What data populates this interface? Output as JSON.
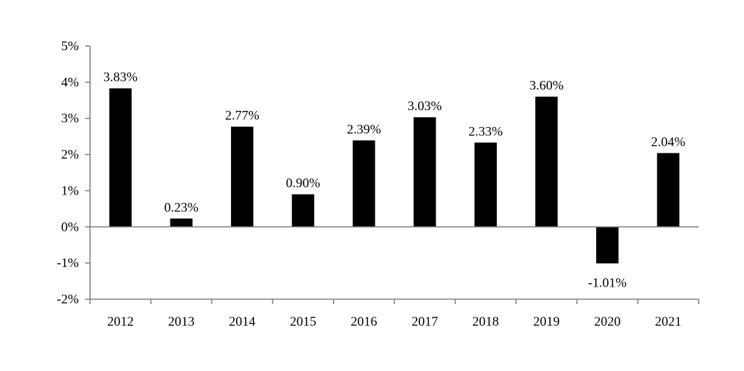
{
  "chart_data": {
    "type": "bar",
    "categories": [
      "2012",
      "2013",
      "2014",
      "2015",
      "2016",
      "2017",
      "2018",
      "2019",
      "2020",
      "2021"
    ],
    "values": [
      3.83,
      0.23,
      2.77,
      0.9,
      2.39,
      3.03,
      2.33,
      3.6,
      -1.01,
      2.04
    ],
    "data_labels": [
      "3.83%",
      "0.23%",
      "2.77%",
      "0.90%",
      "2.39%",
      "3.03%",
      "2.33%",
      "3.60%",
      "-1.01%",
      "2.04%"
    ],
    "y_ticks": [
      5,
      4,
      3,
      2,
      1,
      0,
      -1,
      -2
    ],
    "y_tick_labels": [
      "5%",
      "4%",
      "3%",
      "2%",
      "1%",
      "0%",
      "-1%",
      "-2%"
    ],
    "ylim": [
      -2,
      5
    ],
    "title": "",
    "xlabel": "",
    "ylabel": "",
    "grid": false,
    "bar_color": "#000000",
    "axis_color": "#808080"
  }
}
